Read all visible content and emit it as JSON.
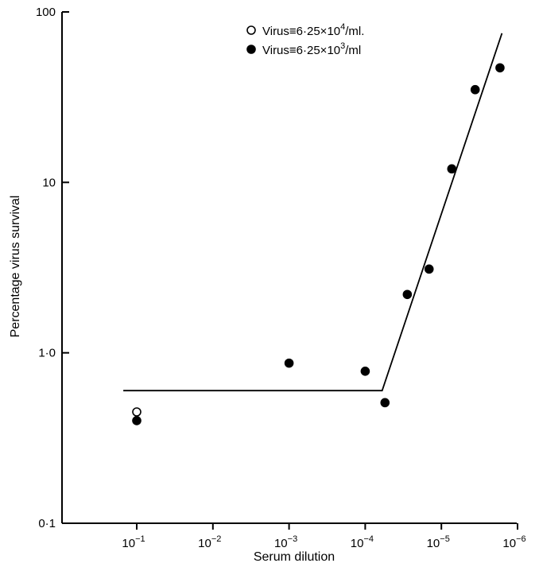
{
  "chart_data": {
    "type": "scatter",
    "xlabel": "Serum dilution",
    "ylabel": "Percentage virus survival",
    "x_scale": "log-reversed",
    "y_scale": "log",
    "xlim": [
      1.2,
      1.2e-06
    ],
    "ylim": [
      0.1,
      100
    ],
    "x_ticks": [
      0.1,
      0.01,
      0.001,
      0.0001,
      1e-05,
      1e-06
    ],
    "x_tick_labels": [
      {
        "base": "10",
        "exp": "−1"
      },
      {
        "base": "10",
        "exp": "−2"
      },
      {
        "base": "10",
        "exp": "−3"
      },
      {
        "base": "10",
        "exp": "−4"
      },
      {
        "base": "10",
        "exp": "−5"
      },
      {
        "base": "10",
        "exp": "−6"
      }
    ],
    "y_ticks": [
      0.1,
      1,
      10,
      100
    ],
    "y_tick_labels": [
      "0·1",
      "1·0",
      "10",
      "100"
    ],
    "legend_placement": "top-center",
    "series": [
      {
        "label": {
          "pre": "Virus≡6·25×10",
          "exp": "4",
          "post": "/ml."
        },
        "marker": "open-circle",
        "points": [
          {
            "x": 0.1,
            "y": 0.45
          }
        ]
      },
      {
        "label": {
          "pre": "Virus≡6·25×10",
          "exp": "3",
          "post": "/ml"
        },
        "marker": "filled-circle",
        "points": [
          {
            "x": 0.1,
            "y": 0.4
          },
          {
            "x": 0.001,
            "y": 0.87
          },
          {
            "x": 0.0001,
            "y": 0.78
          },
          {
            "x": 5.5e-05,
            "y": 0.51
          },
          {
            "x": 2.8e-05,
            "y": 2.2
          },
          {
            "x": 1.45e-05,
            "y": 3.1
          },
          {
            "x": 7.3e-06,
            "y": 12
          },
          {
            "x": 3.6e-06,
            "y": 35
          },
          {
            "x": 1.7e-06,
            "y": 47
          }
        ]
      }
    ],
    "fit_line": [
      {
        "x": 0.15,
        "y": 0.6
      },
      {
        "x": 6e-05,
        "y": 0.6
      },
      {
        "x": 1.6e-06,
        "y": 75
      }
    ],
    "grid": false
  }
}
